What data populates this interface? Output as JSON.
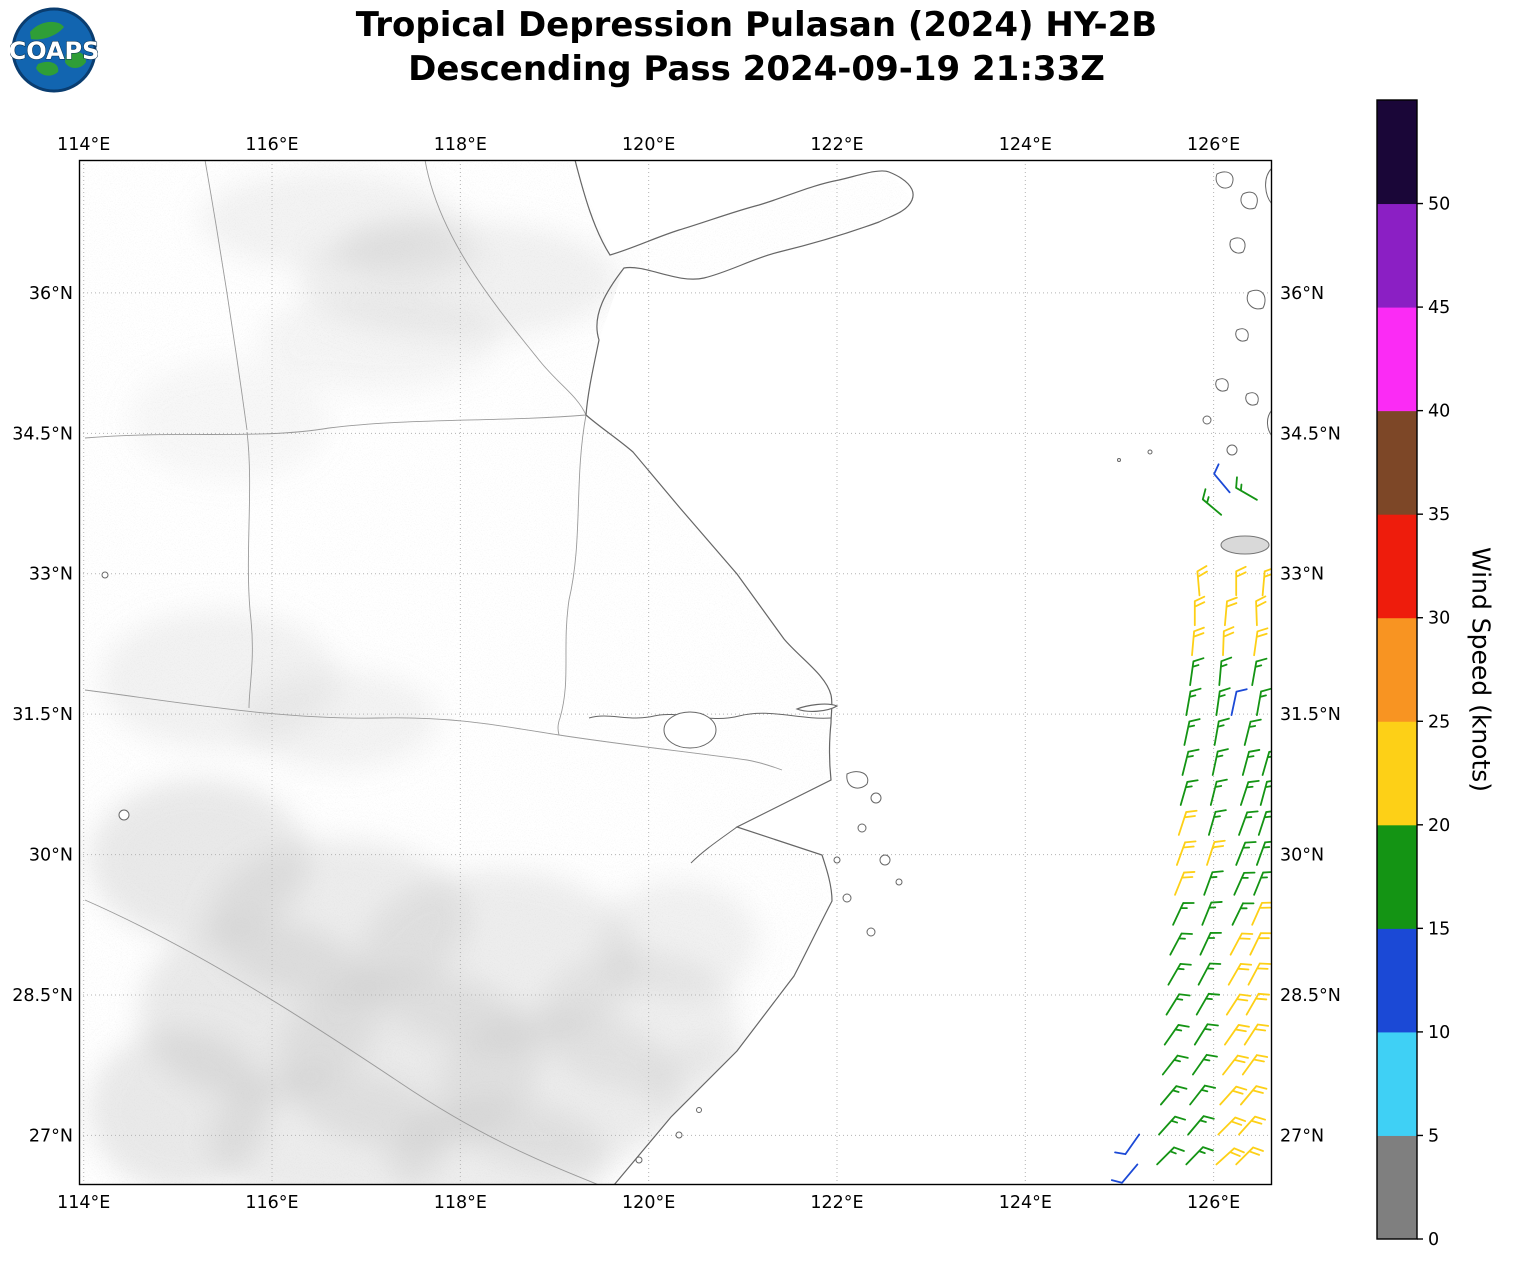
{
  "header": {
    "title_line1": "Tropical Depression Pulasan (2024) HY-2B",
    "title_line2": "Descending Pass 2024-09-19 21:33Z",
    "logo_text": "COAPS"
  },
  "map": {
    "extent": {
      "lon_min": 113.95,
      "lon_max": 126.62,
      "lat_min": 26.47,
      "lat_max": 37.42
    },
    "x_ticks": [
      {
        "lon": 114,
        "label": "114°E"
      },
      {
        "lon": 116,
        "label": "116°E"
      },
      {
        "lon": 118,
        "label": "118°E"
      },
      {
        "lon": 120,
        "label": "120°E"
      },
      {
        "lon": 122,
        "label": "122°E"
      },
      {
        "lon": 124,
        "label": "124°E"
      },
      {
        "lon": 126,
        "label": "126°E"
      }
    ],
    "y_ticks": [
      {
        "lat": 36,
        "label": "36°N"
      },
      {
        "lat": 34.5,
        "label": "34.5°N"
      },
      {
        "lat": 33,
        "label": "33°N"
      },
      {
        "lat": 31.5,
        "label": "31.5°N"
      },
      {
        "lat": 30,
        "label": "30°N"
      },
      {
        "lat": 28.5,
        "label": "28.5°N"
      },
      {
        "lat": 27,
        "label": "27°N"
      }
    ]
  },
  "colorbar": {
    "label": "Wind Speed (knots)",
    "ticks": [
      0,
      5,
      10,
      15,
      20,
      25,
      30,
      35,
      40,
      45,
      50
    ],
    "segments": [
      {
        "min": 0,
        "max": 5,
        "color": "#7f7f7f"
      },
      {
        "min": 5,
        "max": 10,
        "color": "#3fd0f5"
      },
      {
        "min": 10,
        "max": 15,
        "color": "#1b49d6"
      },
      {
        "min": 15,
        "max": 20,
        "color": "#149414"
      },
      {
        "min": 20,
        "max": 25,
        "color": "#fdd017"
      },
      {
        "min": 25,
        "max": 30,
        "color": "#f89422"
      },
      {
        "min": 30,
        "max": 35,
        "color": "#ee1c0c"
      },
      {
        "min": 35,
        "max": 40,
        "color": "#7d4727"
      },
      {
        "min": 40,
        "max": 45,
        "color": "#fb2bf5"
      },
      {
        "min": 45,
        "max": 50,
        "color": "#8b1fc4"
      },
      {
        "min": 50,
        "max": 55,
        "color": "#1a0638"
      }
    ]
  },
  "wind_barbs": {
    "units": "knots",
    "points_format": [
      "lon",
      "lat",
      "knots",
      "dir_from_deg"
    ],
    "points": [
      [
        126.17,
        33.87,
        12,
        320
      ],
      [
        126.46,
        33.79,
        17,
        300
      ],
      [
        126.08,
        33.63,
        17,
        310
      ],
      [
        125.85,
        32.77,
        22,
        355
      ],
      [
        126.24,
        32.77,
        22,
        0
      ],
      [
        126.52,
        32.77,
        22,
        5
      ],
      [
        125.8,
        32.45,
        22,
        0
      ],
      [
        126.12,
        32.45,
        22,
        5
      ],
      [
        126.46,
        32.45,
        22,
        358
      ],
      [
        125.77,
        32.13,
        22,
        5
      ],
      [
        126.1,
        32.13,
        22,
        2
      ],
      [
        126.43,
        32.13,
        22,
        8
      ],
      [
        125.75,
        31.81,
        17,
        8
      ],
      [
        126.06,
        31.81,
        17,
        5
      ],
      [
        126.41,
        31.81,
        17,
        10
      ],
      [
        125.71,
        31.49,
        17,
        10
      ],
      [
        126.03,
        31.49,
        17,
        8
      ],
      [
        126.19,
        31.49,
        12,
        12
      ],
      [
        126.46,
        31.49,
        17,
        10
      ],
      [
        125.69,
        31.17,
        17,
        12
      ],
      [
        126.01,
        31.17,
        17,
        10
      ],
      [
        126.33,
        31.17,
        17,
        14
      ],
      [
        125.67,
        30.85,
        17,
        14
      ],
      [
        125.99,
        30.85,
        17,
        12
      ],
      [
        126.31,
        30.85,
        17,
        15
      ],
      [
        126.52,
        30.85,
        17,
        16
      ],
      [
        125.65,
        30.53,
        17,
        16
      ],
      [
        125.97,
        30.53,
        17,
        14
      ],
      [
        126.29,
        30.53,
        17,
        18
      ],
      [
        126.5,
        30.53,
        17,
        15
      ],
      [
        125.63,
        30.21,
        22,
        18
      ],
      [
        125.95,
        30.21,
        17,
        16
      ],
      [
        126.27,
        30.21,
        17,
        20
      ],
      [
        126.48,
        30.21,
        17,
        18
      ],
      [
        125.61,
        29.89,
        22,
        20
      ],
      [
        125.93,
        29.89,
        22,
        18
      ],
      [
        126.24,
        29.89,
        17,
        22
      ],
      [
        126.46,
        29.89,
        17,
        20
      ],
      [
        125.59,
        29.57,
        22,
        22
      ],
      [
        125.9,
        29.57,
        17,
        20
      ],
      [
        126.22,
        29.57,
        17,
        24
      ],
      [
        126.43,
        29.57,
        17,
        22
      ],
      [
        125.57,
        29.25,
        17,
        25
      ],
      [
        125.88,
        29.25,
        17,
        22
      ],
      [
        126.2,
        29.25,
        17,
        26
      ],
      [
        126.41,
        29.25,
        22,
        24
      ],
      [
        125.54,
        28.93,
        17,
        28
      ],
      [
        125.86,
        28.93,
        17,
        25
      ],
      [
        126.18,
        28.93,
        22,
        28
      ],
      [
        126.39,
        28.93,
        22,
        26
      ],
      [
        125.52,
        28.61,
        17,
        30
      ],
      [
        125.84,
        28.61,
        17,
        28
      ],
      [
        126.16,
        28.61,
        22,
        30
      ],
      [
        126.37,
        28.61,
        22,
        28
      ],
      [
        125.5,
        28.29,
        17,
        32
      ],
      [
        125.82,
        28.29,
        17,
        30
      ],
      [
        126.14,
        28.29,
        22,
        33
      ],
      [
        126.35,
        28.29,
        22,
        30
      ],
      [
        125.48,
        27.97,
        17,
        35
      ],
      [
        125.8,
        27.97,
        17,
        32
      ],
      [
        126.12,
        27.97,
        22,
        35
      ],
      [
        126.33,
        27.97,
        22,
        33
      ],
      [
        125.46,
        27.65,
        17,
        38
      ],
      [
        125.78,
        27.65,
        17,
        35
      ],
      [
        126.1,
        27.65,
        22,
        38
      ],
      [
        126.31,
        27.65,
        22,
        36
      ],
      [
        125.44,
        27.33,
        17,
        40
      ],
      [
        125.75,
        27.33,
        17,
        38
      ],
      [
        126.07,
        27.33,
        22,
        42
      ],
      [
        126.29,
        27.33,
        22,
        40
      ],
      [
        125.21,
        27.01,
        12,
        215
      ],
      [
        125.42,
        27.01,
        17,
        42
      ],
      [
        125.73,
        27.01,
        17,
        40
      ],
      [
        126.05,
        27.01,
        22,
        45
      ],
      [
        126.27,
        27.01,
        22,
        42
      ],
      [
        125.19,
        26.69,
        12,
        220
      ],
      [
        125.4,
        26.69,
        17,
        45
      ],
      [
        125.71,
        26.69,
        17,
        44
      ],
      [
        126.03,
        26.69,
        22,
        48
      ],
      [
        126.24,
        26.69,
        22,
        45
      ]
    ]
  }
}
